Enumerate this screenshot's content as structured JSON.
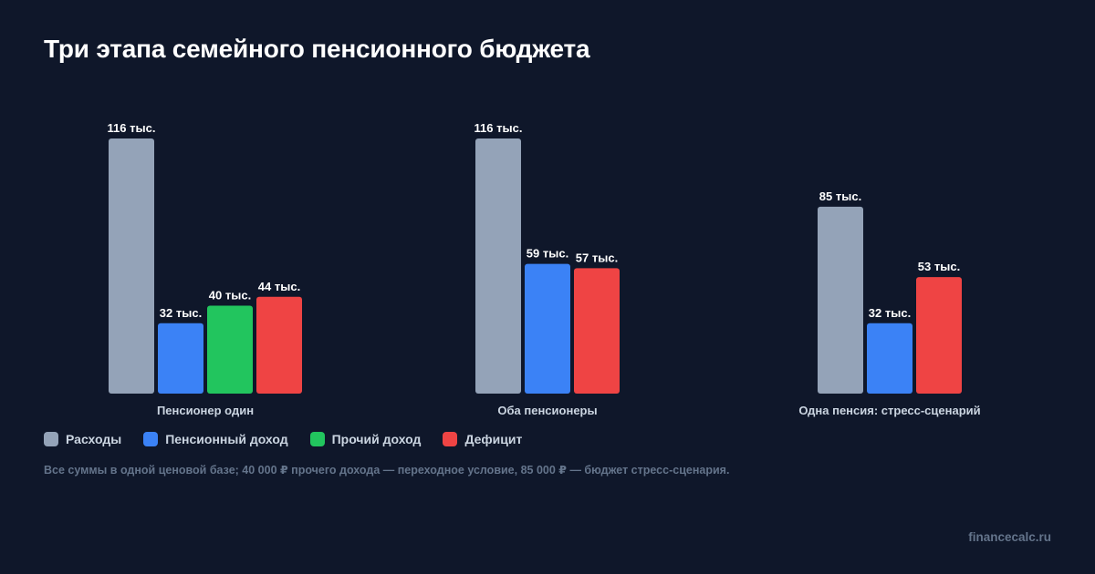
{
  "title": "Три этапа семейного пенсионного бюджета",
  "chart_data": {
    "type": "bar",
    "categories": [
      "Пенсионер один",
      "Оба пенсионеры",
      "Одна пенсия: стресс-сценарий"
    ],
    "series": [
      {
        "name": "Расходы",
        "color": "#94a3b8",
        "values": [
          116,
          116,
          85
        ],
        "labels": [
          "116 тыс.",
          "116 тыс.",
          "85 тыс."
        ]
      },
      {
        "name": "Пенсионный доход",
        "color": "#3b82f6",
        "values": [
          32,
          59,
          32
        ],
        "labels": [
          "32 тыс.",
          "59 тыс.",
          "32 тыс."
        ]
      },
      {
        "name": "Прочий доход",
        "color": "#22c55e",
        "values": [
          40,
          null,
          null
        ],
        "labels": [
          "40 тыс.",
          null,
          null
        ]
      },
      {
        "name": "Дефицит",
        "color": "#ef4444",
        "values": [
          44,
          57,
          53
        ],
        "labels": [
          "44 тыс.",
          "57 тыс.",
          "53 тыс."
        ]
      }
    ],
    "unit": "тыс.",
    "ylim": [
      0,
      116
    ],
    "grid": false,
    "legend_position": "bottom-left"
  },
  "footnote": "Все суммы в одной ценовой базе; 40 000 ₽ прочего дохода — переходное условие, 85 000 ₽ — бюджет стресс-сценария.",
  "watermark": "financecalc.ru",
  "colors": {
    "background": "#0f172a",
    "title": "#ffffff",
    "bar_label": "#ffffff",
    "category_label": "#cbd5e1",
    "footnote": "#64748b"
  }
}
